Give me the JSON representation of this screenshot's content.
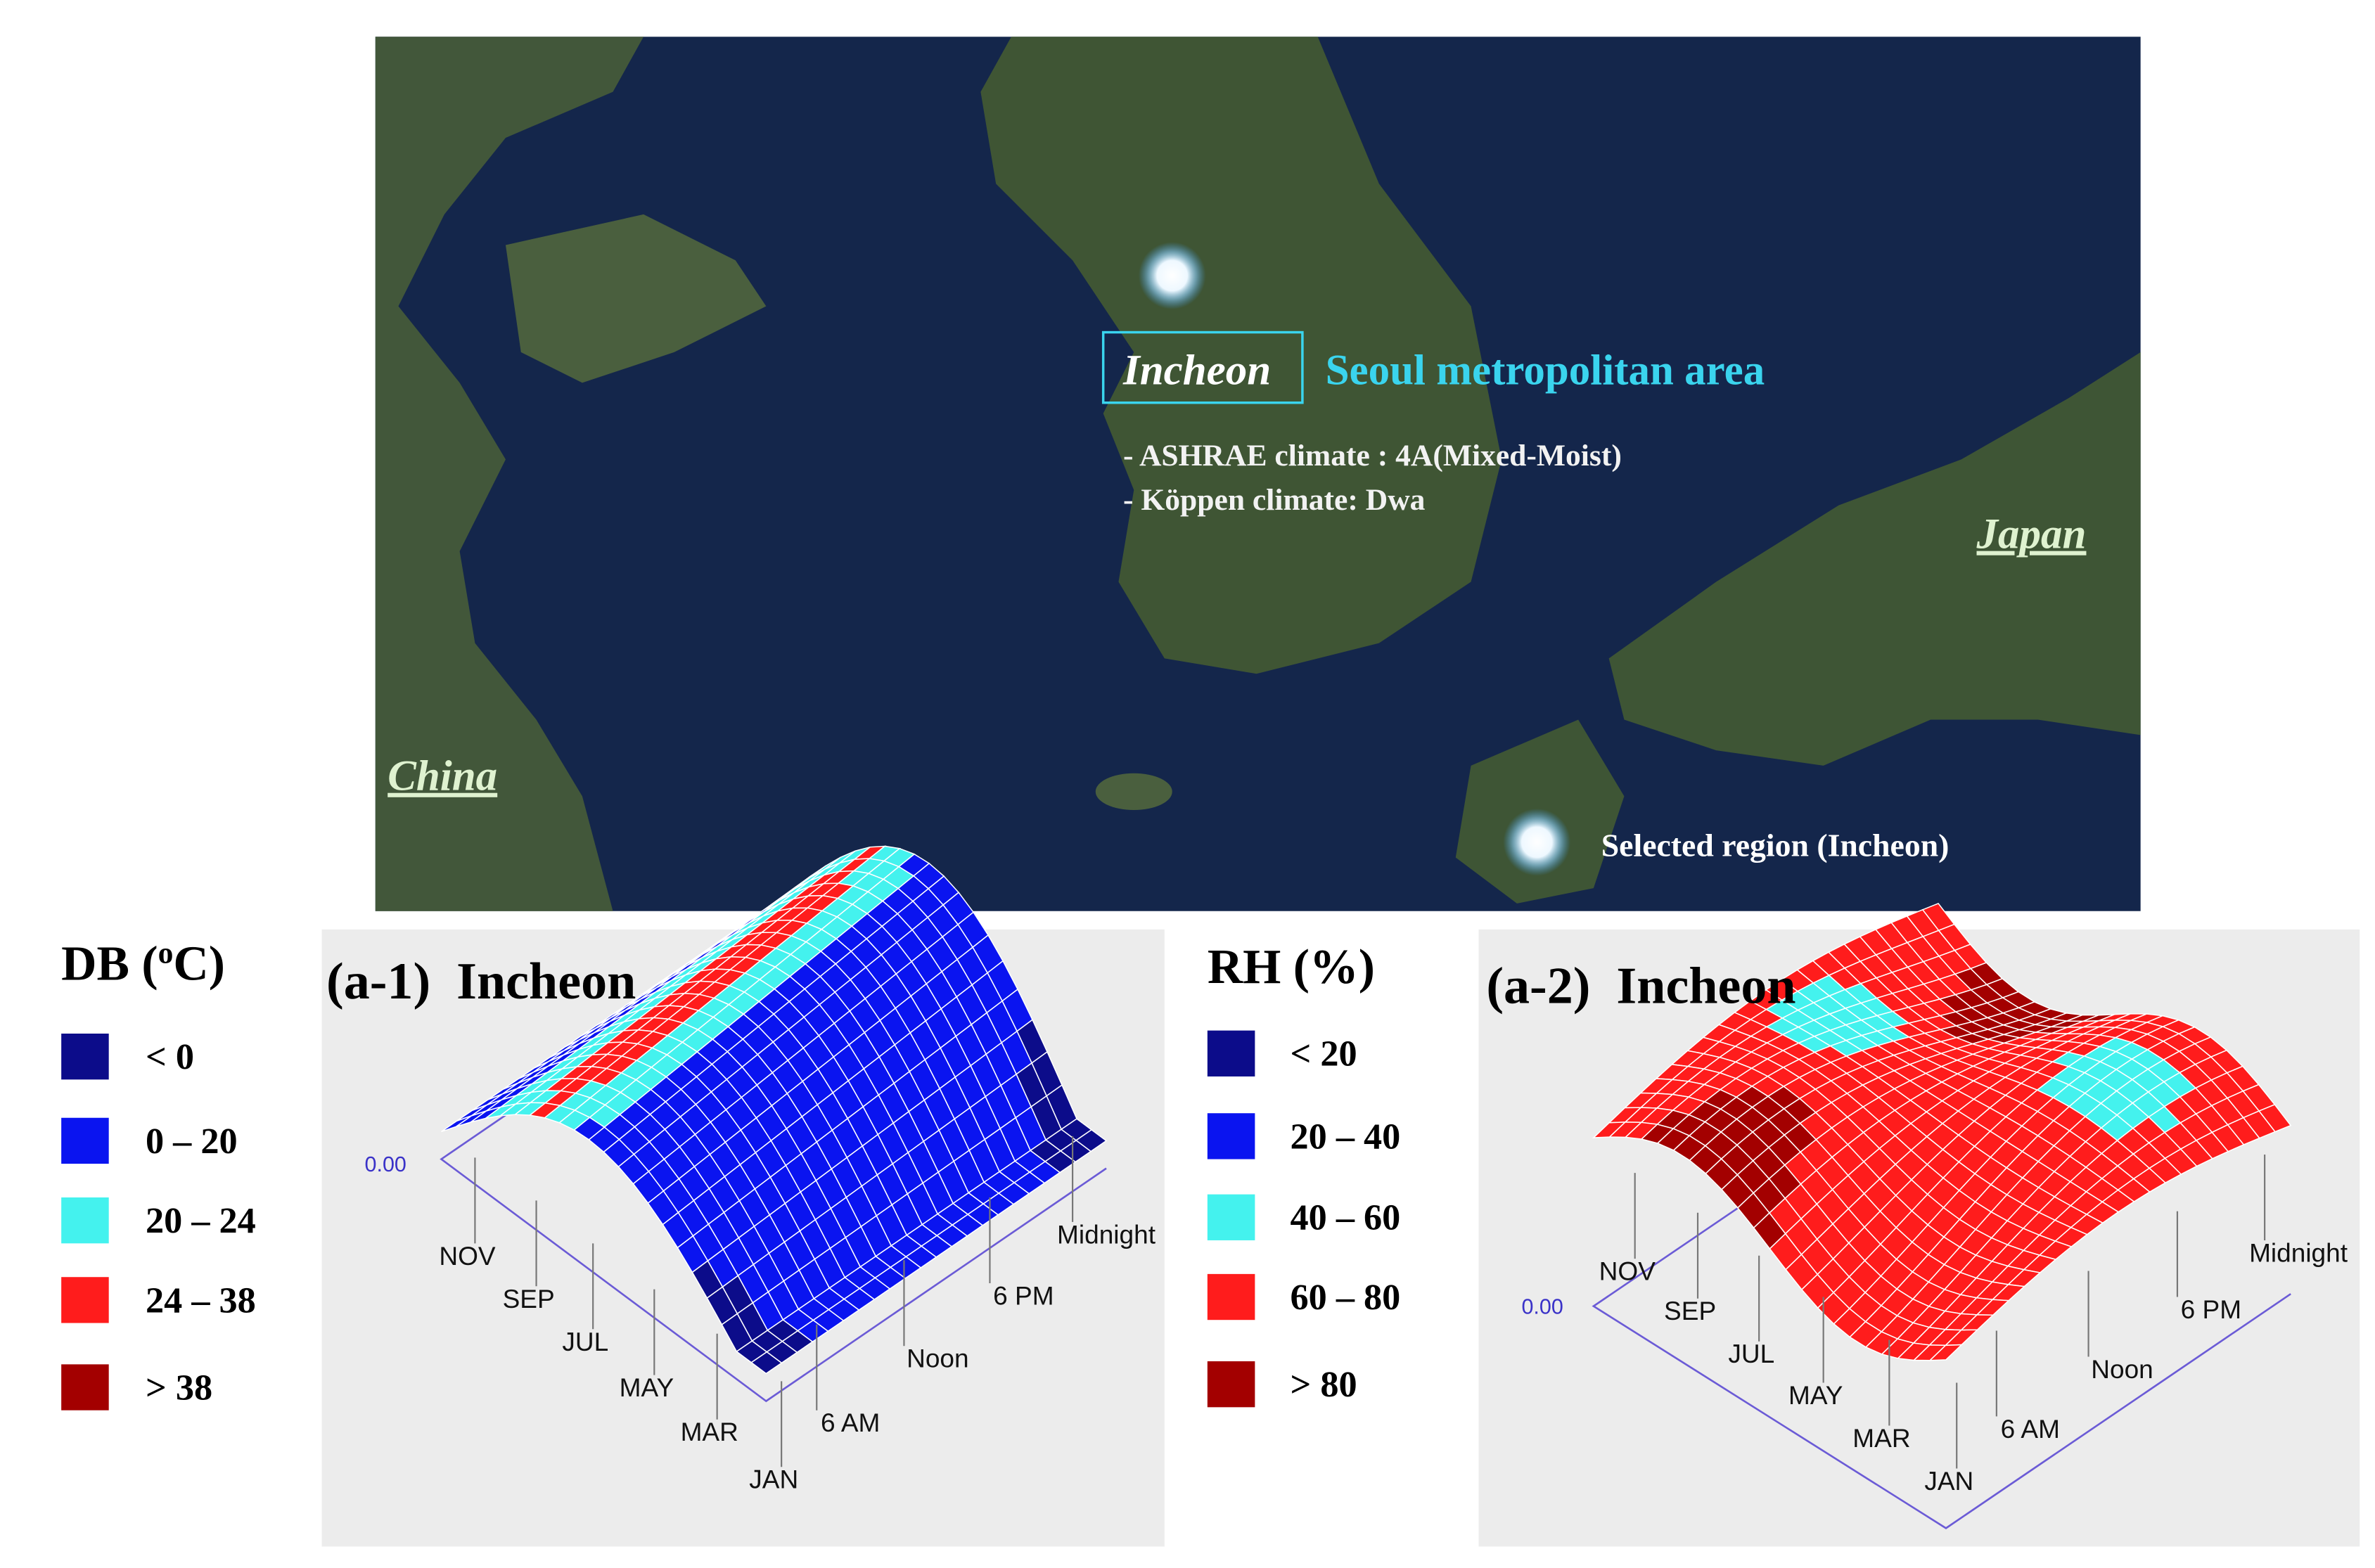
{
  "map": {
    "incheon": "Incheon",
    "area": "Seoul metropolitan area",
    "ashrae": "- ASHRAE climate : 4A(Mixed-Moist)",
    "koppen": "- Köppen climate: Dwa",
    "japan": "Japan",
    "china": "China",
    "selected": "Selected region (Incheon)"
  },
  "panels": [
    {
      "legend": {
        "title": [
          "DB (",
          "o",
          "C)"
        ],
        "items": [
          {
            "label": "< 0",
            "color": "#0c0c8a"
          },
          {
            "label": "0 – 20",
            "color": "#0a14f0"
          },
          {
            "label": "20 – 24",
            "color": "#44f2ee"
          },
          {
            "label": "24 – 38",
            "color": "#ff1c1c"
          },
          {
            "label": "> 38",
            "color": "#a30000"
          }
        ]
      },
      "plot": {
        "title": "(a-1)  Incheon",
        "zero": "0.00",
        "months": [
          "NOV",
          "SEP",
          "JUL",
          "MAY",
          "MAR",
          "JAN"
        ],
        "hours": [
          "6 AM",
          "Noon",
          "6 PM",
          "Midnight"
        ]
      }
    },
    {
      "legend": {
        "title": [
          "RH (%)"
        ],
        "items": [
          {
            "label": "< 20",
            "color": "#0c0c8a"
          },
          {
            "label": "20 – 40",
            "color": "#0a14f0"
          },
          {
            "label": "40 – 60",
            "color": "#44f2ee"
          },
          {
            "label": "60 – 80",
            "color": "#ff1c1c"
          },
          {
            "label": "> 80",
            "color": "#a30000"
          }
        ]
      },
      "plot": {
        "title": "(a-2)  Incheon",
        "zero": "0.00",
        "months": [
          "NOV",
          "SEP",
          "JUL",
          "MAY",
          "MAR",
          "JAN"
        ],
        "hours": [
          "6 AM",
          "Noon",
          "6 PM",
          "Midnight"
        ]
      }
    }
  ]
}
